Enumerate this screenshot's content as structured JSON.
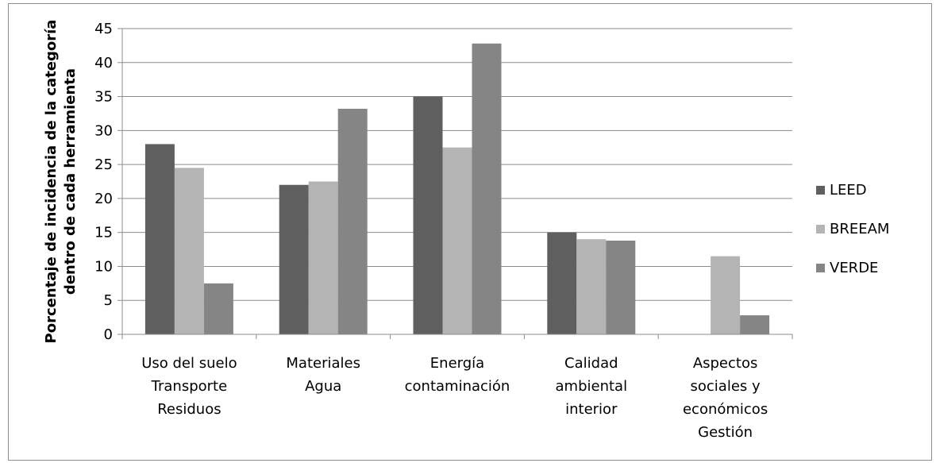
{
  "chart_data": {
    "type": "bar",
    "title": "",
    "ylabel": [
      "Porcentaje de incidencia de la categoría",
      "dentro de cada herramienta"
    ],
    "xlabel": "",
    "ylim": [
      0,
      45
    ],
    "yticks": [
      0,
      5,
      10,
      15,
      20,
      25,
      30,
      35,
      40,
      45
    ],
    "grid": true,
    "legend_position": "right",
    "categories": [
      [
        "Uso del suelo",
        "Transporte",
        "Residuos"
      ],
      [
        "Materiales",
        "Agua"
      ],
      [
        "Energía",
        "contaminación"
      ],
      [
        "Calidad",
        "ambiental",
        "interior"
      ],
      [
        "Aspectos",
        "sociales y",
        "económicos",
        "Gestión"
      ]
    ],
    "series": [
      {
        "name": "LEED",
        "color": "#5f5f5f",
        "values": [
          28,
          22,
          35,
          15,
          0
        ]
      },
      {
        "name": "BREEAM",
        "color": "#b4b4b4",
        "values": [
          24.5,
          22.5,
          27.5,
          14,
          11.5
        ]
      },
      {
        "name": "VERDE",
        "color": "#858585",
        "values": [
          7.5,
          33.2,
          42.8,
          13.8,
          2.8
        ]
      }
    ]
  }
}
